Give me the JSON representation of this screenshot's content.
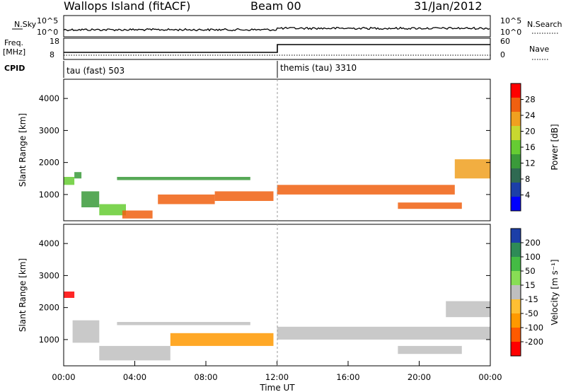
{
  "header": {
    "station": "Wallops Island (fitACF)",
    "beam": "Beam 00",
    "date": "31/Jan/2012"
  },
  "strip": {
    "nsky_label": "N.Sky",
    "nsky_ticks": [
      "10^5",
      "10^0"
    ],
    "nsearch_label": "N.Search",
    "nsearch_ticks": [
      "10^5",
      "10^0"
    ],
    "freq_label": "Freq.",
    "freq_unit": "[MHz]",
    "freq_ticks": [
      "18",
      "8"
    ],
    "nave_label": "Nave",
    "nave_ticks": [
      "60",
      "0"
    ],
    "cpid_label": "CPID",
    "cpid_segments": [
      {
        "label": "tau (fast) 503",
        "start_hour": 0
      },
      {
        "label": "themis (tau) 3310",
        "start_hour": 12
      }
    ]
  },
  "chart_data": [
    {
      "type": "heatmap",
      "name": "power",
      "ylabel": "Slant Range [km]",
      "yticks": [
        1000,
        2000,
        3000,
        4000
      ],
      "ylim": [
        180,
        4600
      ],
      "xlim": [
        0,
        24
      ],
      "colorbar_label": "Power [dB]",
      "colorbar_ticks": [
        "28",
        "24",
        "20",
        "16",
        "12",
        "8",
        "4"
      ],
      "colorbar_colors": [
        "#0000ff",
        "#1c3fa8",
        "#2f6a52",
        "#3a9a3a",
        "#66cc33",
        "#c8d830",
        "#f0a020",
        "#f06010",
        "#ff0000"
      ],
      "features": [
        {
          "t0": 0.0,
          "t1": 0.6,
          "r0": 1300,
          "r1": 1550,
          "value": 16
        },
        {
          "t0": 0.6,
          "t1": 1.0,
          "r0": 1500,
          "r1": 1700,
          "value": 12
        },
        {
          "t0": 1.0,
          "t1": 2.0,
          "r0": 600,
          "r1": 1100,
          "value": 10
        },
        {
          "t0": 2.0,
          "t1": 3.5,
          "r0": 350,
          "r1": 700,
          "value": 14
        },
        {
          "t0": 3.3,
          "t1": 5.0,
          "r0": 250,
          "r1": 500,
          "value": 26
        },
        {
          "t0": 5.3,
          "t1": 8.5,
          "r0": 700,
          "r1": 1000,
          "value": 26
        },
        {
          "t0": 8.5,
          "t1": 11.8,
          "r0": 800,
          "r1": 1100,
          "value": 26
        },
        {
          "t0": 3.0,
          "t1": 10.5,
          "r0": 1450,
          "r1": 1550,
          "value": 12
        },
        {
          "t0": 12.0,
          "t1": 22.0,
          "r0": 1000,
          "r1": 1300,
          "value": 26
        },
        {
          "t0": 18.8,
          "t1": 22.4,
          "r0": 550,
          "r1": 750,
          "value": 26
        },
        {
          "t0": 22.0,
          "t1": 24.0,
          "r0": 1500,
          "r1": 2100,
          "value": 22
        }
      ]
    },
    {
      "type": "heatmap",
      "name": "velocity",
      "ylabel": "Slant Range [km]",
      "yticks": [
        1000,
        2000,
        3000,
        4000
      ],
      "ylim": [
        180,
        4600
      ],
      "xlim": [
        0,
        24
      ],
      "xticks": [
        "00:00",
        "04:00",
        "08:00",
        "12:00",
        "16:00",
        "20:00",
        "00:00"
      ],
      "xlabel": "Time UT",
      "colorbar_label": "Velocity [m s⁻¹]",
      "colorbar_ticks": [
        "200",
        "100",
        "50",
        "15",
        "-15",
        "-50",
        "-100",
        "-200"
      ],
      "colorbar_colors": [
        "#ff0000",
        "#ff5a00",
        "#ff9900",
        "#ffbf33",
        "#bfbfbf",
        "#88dd55",
        "#44bb44",
        "#2e8b57",
        "#1c3fa8"
      ],
      "features": [
        {
          "t0": 0.0,
          "t1": 0.6,
          "r0": 2300,
          "r1": 2500,
          "value": -200
        },
        {
          "t0": 0.5,
          "t1": 2.0,
          "r0": 900,
          "r1": 1600,
          "value": 0
        },
        {
          "t0": 2.0,
          "t1": 6.0,
          "r0": 350,
          "r1": 800,
          "value": 0
        },
        {
          "t0": 6.0,
          "t1": 11.8,
          "r0": 800,
          "r1": 1200,
          "value": -50
        },
        {
          "t0": 3.0,
          "t1": 10.5,
          "r0": 1450,
          "r1": 1550,
          "value": 0
        },
        {
          "t0": 12.0,
          "t1": 24.0,
          "r0": 1000,
          "r1": 1400,
          "value": 0
        },
        {
          "t0": 18.8,
          "t1": 22.4,
          "r0": 550,
          "r1": 800,
          "value": 0
        },
        {
          "t0": 21.5,
          "t1": 24.0,
          "r0": 1700,
          "r1": 2200,
          "value": 0
        }
      ]
    }
  ]
}
